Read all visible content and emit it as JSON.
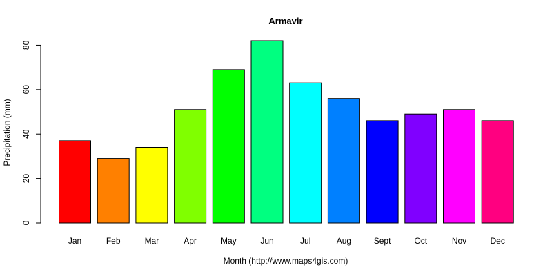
{
  "chart_data": {
    "type": "bar",
    "title": "Armavir",
    "xlabel": "Month (http://www.maps4gis.com)",
    "ylabel": "Precipitation (mm)",
    "categories": [
      "Jan",
      "Feb",
      "Mar",
      "Apr",
      "May",
      "Jun",
      "Jul",
      "Aug",
      "Sept",
      "Oct",
      "Nov",
      "Dec"
    ],
    "values": [
      37,
      29,
      34,
      51,
      69,
      82,
      63,
      56,
      46,
      49,
      51,
      46
    ],
    "colors": [
      "#FF0000",
      "#FF8000",
      "#FFFF00",
      "#80FF00",
      "#00FF00",
      "#00FF80",
      "#00FFFF",
      "#0080FF",
      "#0000FF",
      "#8000FF",
      "#FF00FF",
      "#FF0080"
    ],
    "ylim": [
      0,
      82
    ],
    "yticks": [
      0,
      20,
      40,
      60,
      80
    ],
    "ytick_labels": [
      "0",
      "20",
      "40",
      "60",
      "80"
    ],
    "grid": false,
    "legend": "none"
  }
}
